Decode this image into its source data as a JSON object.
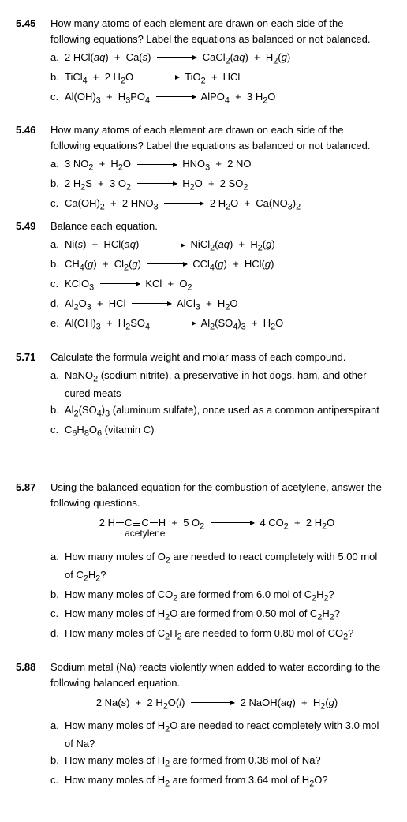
{
  "p545": {
    "num": "5.45",
    "stem": "How many atoms of each element are drawn on each side of the following equations? Label the equations as balanced or not balanced.",
    "a_label": "a.",
    "a_lhs": "2 HCl(<i>aq</i>) &nbsp;+&nbsp; Ca(<i>s</i>)",
    "a_rhs": "CaCl<sub>2</sub>(<i>aq</i>) &nbsp;+&nbsp; H<sub>2</sub>(<i>g</i>)",
    "b_label": "b.",
    "b_lhs": "TiCl<sub>4</sub> &nbsp;+&nbsp; 2 H<sub>2</sub>O",
    "b_rhs": "TiO<sub>2</sub> &nbsp;+&nbsp; HCl",
    "c_label": "c.",
    "c_lhs": "Al(OH)<sub>3</sub> &nbsp;+&nbsp; H<sub>3</sub>PO<sub>4</sub>",
    "c_rhs": "AlPO<sub>4</sub> &nbsp;+&nbsp; 3 H<sub>2</sub>O"
  },
  "p546": {
    "num": "5.46",
    "stem": "How many atoms of each element are drawn on each side of the following equations? Label the equations as balanced or not balanced.",
    "a_label": "a.",
    "a_lhs": "3 NO<sub>2</sub> &nbsp;+&nbsp; H<sub>2</sub>O",
    "a_rhs": "HNO<sub>3</sub> &nbsp;+&nbsp; 2 NO",
    "b_label": "b.",
    "b_lhs": "2 H<sub>2</sub>S &nbsp;+&nbsp; 3 O<sub>2</sub>",
    "b_rhs": "H<sub>2</sub>O &nbsp;+&nbsp; 2 SO<sub>2</sub>",
    "c_label": "c.",
    "c_lhs": "Ca(OH)<sub>2</sub> &nbsp;+&nbsp; 2 HNO<sub>3</sub>",
    "c_rhs": "2 H<sub>2</sub>O &nbsp;+&nbsp; Ca(NO<sub>3</sub>)<sub>2</sub>"
  },
  "p549": {
    "num": "5.49",
    "stem": "Balance each equation.",
    "a_label": "a.",
    "a_lhs": "Ni(<i>s</i>) &nbsp;+&nbsp; HCl(<i>aq</i>)",
    "a_rhs": "NiCl<sub>2</sub>(<i>aq</i>) &nbsp;+&nbsp; H<sub>2</sub>(<i>g</i>)",
    "b_label": "b.",
    "b_lhs": "CH<sub>4</sub>(<i>g</i>) &nbsp;+&nbsp; Cl<sub>2</sub>(<i>g</i>)",
    "b_rhs": "CCl<sub>4</sub>(<i>g</i>) &nbsp;+&nbsp; HCl(<i>g</i>)",
    "c_label": "c.",
    "c_lhs": "KClO<sub>3</sub>",
    "c_rhs": "KCl &nbsp;+&nbsp; O<sub>2</sub>",
    "d_label": "d.",
    "d_lhs": "Al<sub>2</sub>O<sub>3</sub> &nbsp;+&nbsp; HCl",
    "d_rhs": "AlCl<sub>3</sub> &nbsp;+&nbsp; H<sub>2</sub>O",
    "e_label": "e.",
    "e_lhs": "Al(OH)<sub>3</sub> &nbsp;+&nbsp; H<sub>2</sub>SO<sub>4</sub>",
    "e_rhs": "Al<sub>2</sub>(SO<sub>4</sub>)<sub>3</sub> &nbsp;+&nbsp; H<sub>2</sub>O"
  },
  "p571": {
    "num": "5.71",
    "stem": "Calculate the formula weight and molar mass of each compound.",
    "a_label": "a.",
    "a_text": "NaNO<sub>2</sub> (sodium nitrite), a preservative in hot dogs, ham, and other cured meats",
    "b_label": "b.",
    "b_text": "Al<sub>2</sub>(SO<sub>4</sub>)<sub>3</sub> (aluminum sulfate), once used as a common antiperspirant",
    "c_label": "c.",
    "c_text": "C<sub>6</sub>H<sub>8</sub>O<sub>6</sub> (vitamin C)"
  },
  "p587": {
    "num": "5.87",
    "stem": "Using the balanced equation for the combustion of acetylene, answer the following questions.",
    "eq_lhs_pre": "2 H",
    "eq_lhs_mid": "C",
    "eq_lhs_mid2": "C",
    "eq_lhs_post": "H &nbsp;+&nbsp; 5 O<sub>2</sub>",
    "eq_rhs": "4 CO<sub>2</sub> &nbsp;+&nbsp; 2 H<sub>2</sub>O",
    "eq_label": "acetylene",
    "a_label": "a.",
    "a_text": "How many moles of O<sub>2</sub> are needed to react completely with 5.00 mol of C<sub>2</sub>H<sub>2</sub>?",
    "b_label": "b.",
    "b_text": "How many moles of CO<sub>2</sub> are formed from 6.0 mol of C<sub>2</sub>H<sub>2</sub>?",
    "c_label": "c.",
    "c_text": "How many moles of H<sub>2</sub>O are formed from 0.50 mol of C<sub>2</sub>H<sub>2</sub>?",
    "d_label": "d.",
    "d_text": "How many moles of C<sub>2</sub>H<sub>2</sub> are needed to form 0.80 mol of CO<sub>2</sub>?"
  },
  "p588": {
    "num": "5.88",
    "stem": "Sodium metal (Na) reacts violently when added to water according to the following balanced equation.",
    "eq_lhs": "2 Na(<i>s</i>) &nbsp;+&nbsp; 2 H<sub>2</sub>O(<i>l</i>)",
    "eq_rhs": "2 NaOH(<i>aq</i>) &nbsp;+&nbsp; H<sub>2</sub>(<i>g</i>)",
    "a_label": "a.",
    "a_text": "How many moles of H<sub>2</sub>O are needed to react completely with 3.0 mol of Na?",
    "b_label": "b.",
    "b_text": "How many moles of H<sub>2</sub> are formed from 0.38 mol of Na?",
    "c_label": "c.",
    "c_text": "How many moles of H<sub>2</sub> are formed from 3.64 mol of H<sub>2</sub>O?"
  },
  "arrow_widths": {
    "short": 40,
    "med": 50,
    "long": 60
  }
}
